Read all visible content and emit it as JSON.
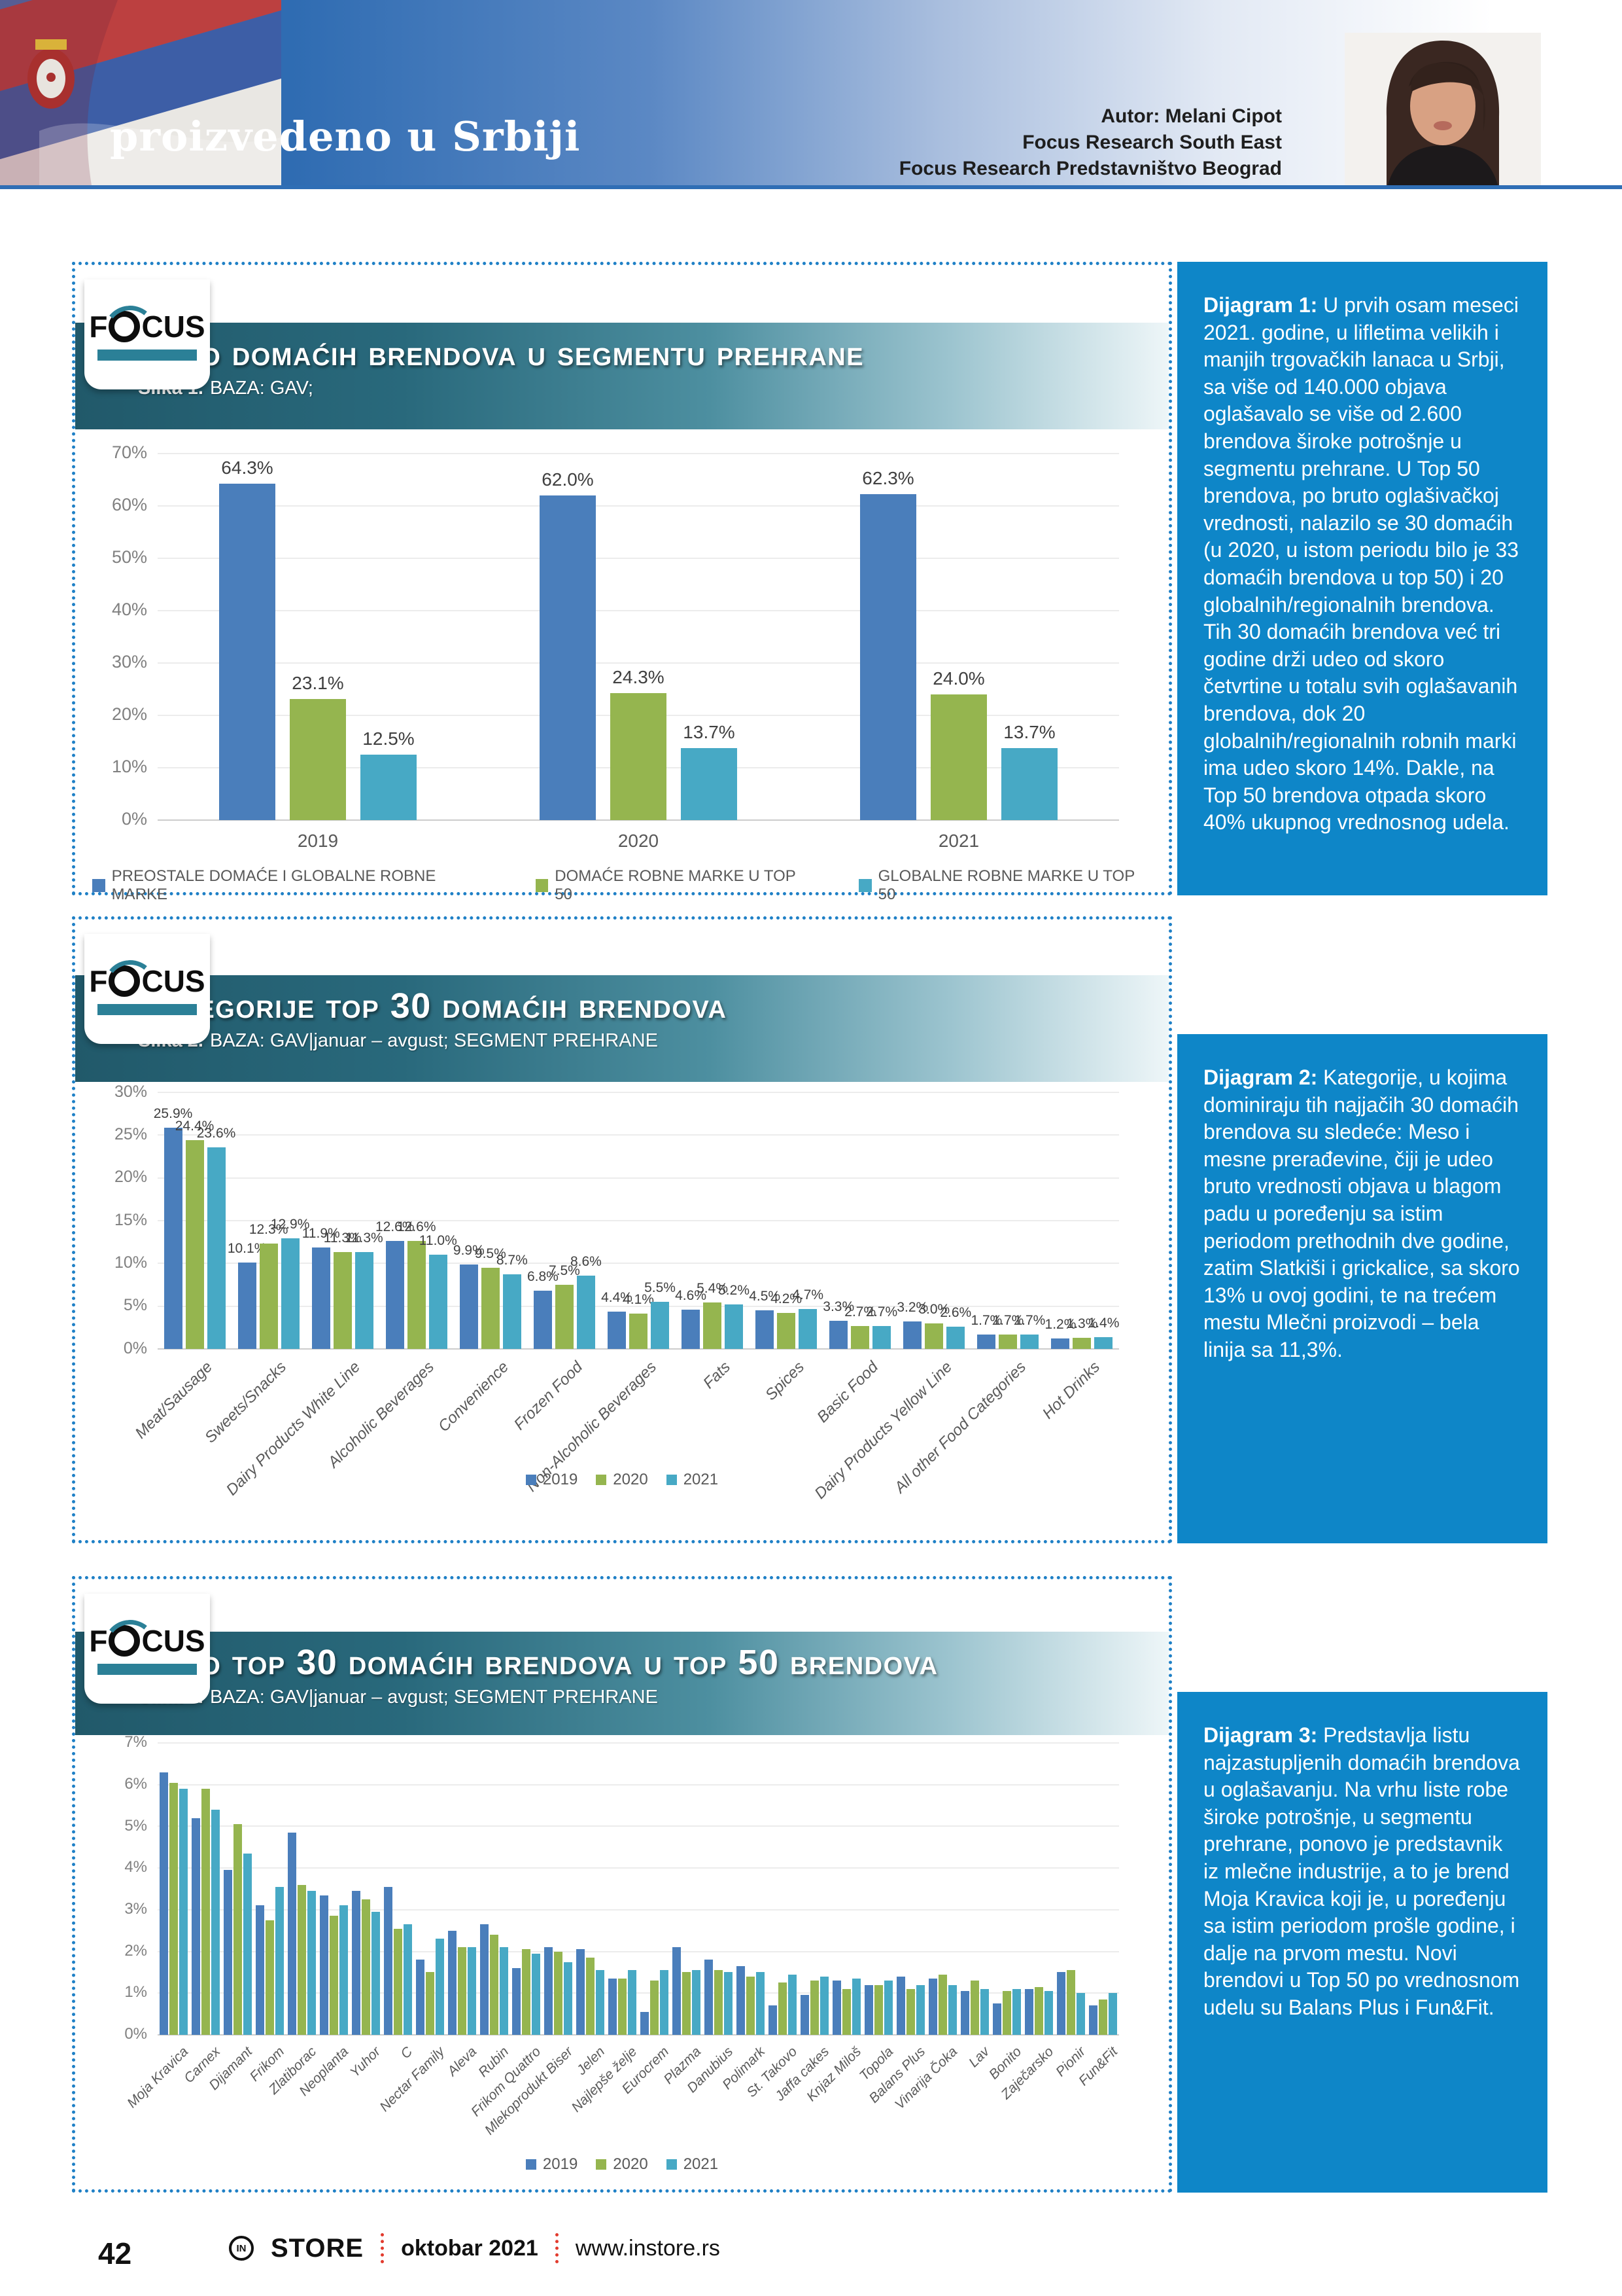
{
  "theme": {
    "series_colors": [
      "#4a7ebb",
      "#95b54f",
      "#47a9c5"
    ],
    "sidebar_bg": "#0e86c8",
    "panel_border": "#1f80c6",
    "banner_dark": "#235d6d",
    "header_blue": "#2a67ae",
    "footer_accent": "#e23b2e"
  },
  "header": {
    "title": "proizvedeno u Srbiji",
    "author_lines": [
      "Autor: Melani Cipot",
      "Focus Research South East",
      "Focus Research Predstavništvo Beograd"
    ]
  },
  "focus_logo": {
    "left": "F",
    "right": "CUS"
  },
  "panels": [
    {
      "title": "Udeo domaćih brendova u segmentu prehrane",
      "subtitle_label": "Slika 1.",
      "subtitle_rest": "BAZA: GAV;",
      "sidebar_lead": "Dijagram 1:",
      "sidebar_body": "U prvih osam meseci 2021. godine, u lifletima velikih i manjih trgovačkih lanaca u Srbji, sa više od 140.000 objava oglašavalo se više od 2.600 brendova široke potrošnje u segmentu prehrane. U Top 50 brendova, po bruto oglašivačkoj vrednosti, nalazilo se 30 domaćih (u 2020, u istom periodu bilo je 33 domaćih brendova u top 50) i 20 globalnih/regionalnih brendova. Tih 30 domaćih brendova već tri godine drži udeo od skoro četvrtine u totalu svih oglašavanih brendova, dok 20 globalnih/regionalnih robnih marki ima udeo skoro 14%. Dakle, na Top 50 brendova otpada skoro 40% ukupnog vrednosnog udela."
    },
    {
      "title": "Kategorije top 30 domaćih brendova",
      "subtitle_label": "Slika 2.",
      "subtitle_rest": "BAZA: GAV|januar – avgust; SEGMENT PREHRANE",
      "sidebar_lead": "Dijagram 2:",
      "sidebar_body": "Kategorije, u kojima dominiraju tih najjačih 30 domaćih brendova su sledeće: Meso i mesne prerađevine, čiji je udeo bruto vrednosti objava u blagom padu u poređenju sa istim periodom prethodnih dve godine, zatim Slatkiši i grickalice, sa skoro 13% u ovoj godini, te na trećem mestu Mlečni proizvodi – bela linija sa 11,3%."
    },
    {
      "title": "Udeo top 30 domaćih brendova u top 50 brendova",
      "subtitle_label": "Slika 3.",
      "subtitle_rest": "BAZA: GAV|januar – avgust; SEGMENT PREHRANE",
      "sidebar_lead": "Dijagram 3:",
      "sidebar_body": "Predstavlja listu najzastupljenih domaćih brendova u oglašavanju. Na vrhu liste robe široke potrošnje, u segmentu prehrane, ponovo je predstavnik iz mlečne industrije, a to je brend Moja Kravica koji je, u poređenju sa istim periodom prošle godine, i dalje na prvom mestu. Novi brendovi u Top 50 po vrednosnom udelu su Balans Plus i Fun&Fit."
    }
  ],
  "footer": {
    "page_number": "42",
    "brand_prefix": "IN",
    "brand": "STORE",
    "issue": "oktobar 2021",
    "site": "www.instore.rs"
  },
  "chart_data": [
    {
      "type": "bar",
      "title": "Udeo domaćih brendova u segmentu prehrane",
      "categories": [
        "2019",
        "2020",
        "2021"
      ],
      "series": [
        {
          "name": "PREOSTALE DOMAĆE I GLOBALNE ROBNE MARKE",
          "values": [
            64.3,
            62.0,
            62.3
          ]
        },
        {
          "name": "DOMAĆE ROBNE MARKE U TOP 50",
          "values": [
            23.1,
            24.3,
            24.0
          ]
        },
        {
          "name": "GLOBALNE ROBNE MARKE U TOP 50",
          "values": [
            12.5,
            13.7,
            13.7
          ]
        }
      ],
      "colors": [
        "#4a7ebb",
        "#95b54f",
        "#47a9c5"
      ],
      "xlabel": "",
      "ylabel": "",
      "ylim": [
        0,
        70
      ],
      "ytick": 10,
      "grid": true,
      "value_labels": true,
      "legend_position": "bottom"
    },
    {
      "type": "bar",
      "title": "Kategorije top 30 domaćih brendova",
      "categories": [
        "Meat/Sausage",
        "Sweets/Snacks",
        "Dairy Products White Line",
        "Alcoholic Beverages",
        "Convenience",
        "Frozen Food",
        "Non-Alcoholic Beverages",
        "Fats",
        "Spices",
        "Basic Food",
        "Dairy Products Yellow Line",
        "All other Food Categories",
        "Hot Drinks"
      ],
      "series": [
        {
          "name": "2019",
          "values": [
            25.9,
            10.1,
            11.9,
            12.6,
            9.9,
            6.8,
            4.4,
            4.6,
            4.5,
            3.3,
            3.2,
            1.7,
            1.2
          ]
        },
        {
          "name": "2020",
          "values": [
            24.4,
            12.3,
            11.3,
            12.6,
            9.5,
            7.5,
            4.1,
            5.4,
            4.2,
            2.7,
            3.0,
            1.7,
            1.3
          ]
        },
        {
          "name": "2021",
          "values": [
            23.6,
            12.9,
            11.3,
            11.0,
            8.7,
            8.6,
            5.5,
            5.2,
            4.7,
            2.7,
            2.6,
            1.7,
            1.4
          ]
        }
      ],
      "colors": [
        "#4a7ebb",
        "#95b54f",
        "#47a9c5"
      ],
      "xlabel": "",
      "ylabel": "",
      "ylim": [
        0,
        30
      ],
      "ytick": 5,
      "grid": true,
      "value_labels": true,
      "legend_position": "bottom"
    },
    {
      "type": "bar",
      "title": "Udeo top 30 domaćih brendova u top 50 brendova",
      "categories": [
        "Moja Kravica",
        "Carnex",
        "Dijamant",
        "Frikom",
        "Zlatiborac",
        "Neoplanta",
        "Yuhor",
        "C",
        "Nectar Family",
        "Aleva",
        "Rubin",
        "Frikom Quattro",
        "Mlekoprodukt Biser",
        "Jelen",
        "Najlepše želje",
        "Eurocrem",
        "Plazma",
        "Danubius",
        "Polimark",
        "St. Takovo",
        "Jaffa cakes",
        "Knjaz Miloš",
        "Topola",
        "Balans Plus",
        "Vinarija Čoka",
        "Lav",
        "Bonito",
        "Zaječarsko",
        "Pionir",
        "Fun&Fit"
      ],
      "series": [
        {
          "name": "2019",
          "values": [
            6.3,
            5.2,
            3.95,
            3.1,
            4.85,
            3.35,
            3.45,
            3.55,
            1.8,
            2.5,
            2.65,
            1.6,
            2.1,
            2.05,
            1.35,
            0.55,
            2.1,
            1.8,
            1.65,
            0.7,
            0.95,
            1.3,
            1.2,
            1.4,
            1.35,
            1.05,
            0.75,
            1.1,
            1.5,
            0.7
          ]
        },
        {
          "name": "2020",
          "values": [
            6.05,
            5.9,
            5.05,
            2.75,
            3.6,
            2.85,
            3.25,
            2.55,
            1.5,
            2.1,
            2.4,
            2.05,
            2.0,
            1.85,
            1.35,
            1.3,
            1.5,
            1.55,
            1.4,
            1.25,
            1.3,
            1.1,
            1.2,
            1.1,
            1.45,
            1.3,
            1.05,
            1.15,
            1.55,
            0.85
          ]
        },
        {
          "name": "2021",
          "values": [
            5.9,
            5.4,
            4.35,
            3.55,
            3.45,
            3.1,
            2.95,
            2.65,
            2.3,
            2.1,
            2.1,
            1.95,
            1.75,
            1.55,
            1.55,
            1.55,
            1.55,
            1.5,
            1.5,
            1.45,
            1.4,
            1.35,
            1.3,
            1.2,
            1.2,
            1.1,
            1.1,
            1.05,
            1.0,
            1.0
          ]
        }
      ],
      "colors": [
        "#4a7ebb",
        "#95b54f",
        "#47a9c5"
      ],
      "xlabel": "",
      "ylabel": "",
      "ylim": [
        0,
        7
      ],
      "ytick": 1,
      "grid": true,
      "value_labels": false,
      "legend_position": "bottom"
    }
  ]
}
